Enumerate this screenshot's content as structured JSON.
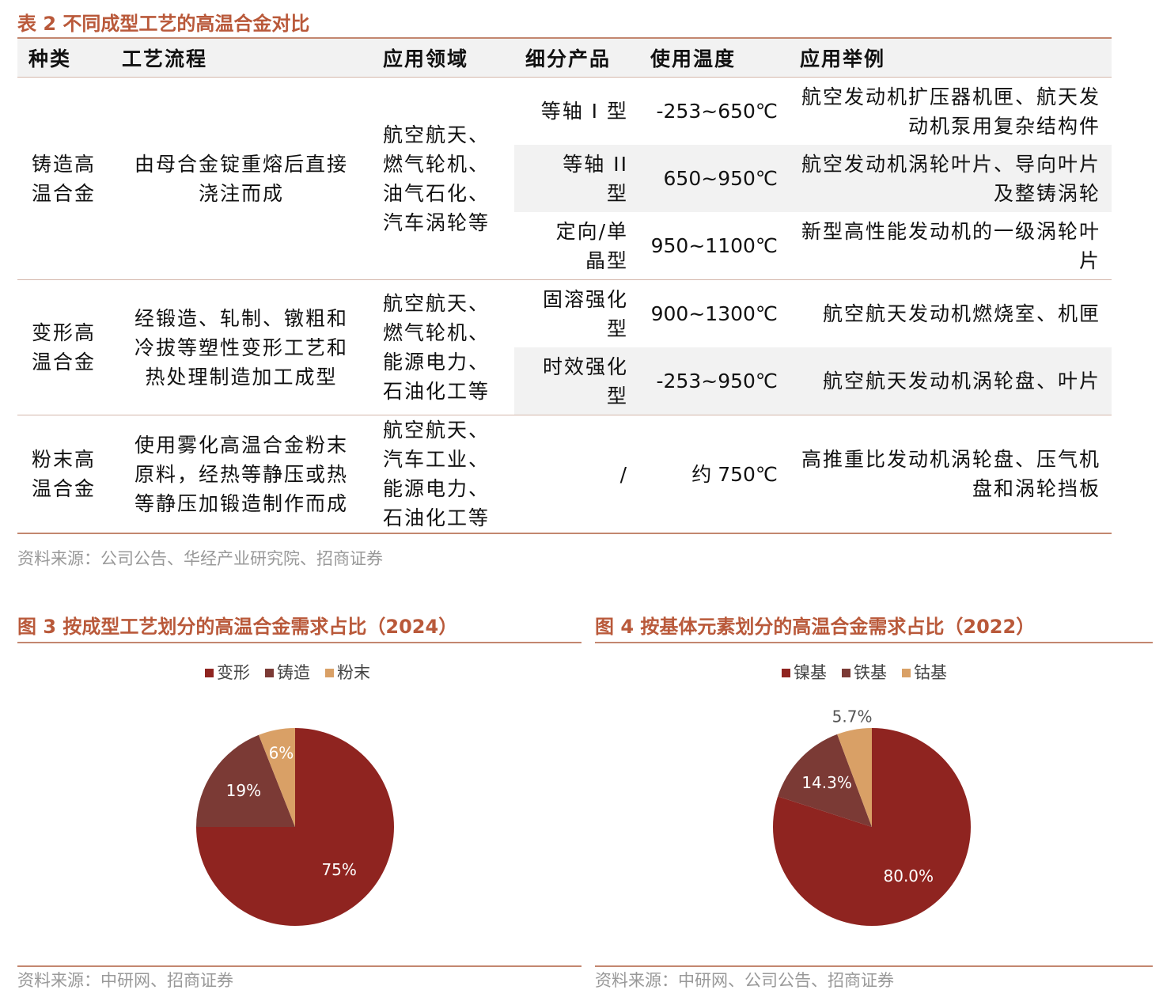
{
  "table": {
    "title": "表 2  不同成型工艺的高温合金对比",
    "headers": [
      "种类",
      "工艺流程",
      "应用领域",
      "细分产品",
      "使用温度",
      "应用举例"
    ],
    "groups": [
      {
        "category": "铸造高温合金",
        "process": "由母合金锭重熔后直接浇注而成",
        "application": "航空航天、燃气轮机、油气石化、汽车涡轮等",
        "rows": [
          [
            "等轴 I 型",
            "-253~650℃",
            "航空发动机扩压器机匣、航天发动机泵用复杂结构件"
          ],
          [
            "等轴 II 型",
            "650~950℃",
            "航空发动机涡轮叶片、导向叶片及整铸涡轮"
          ],
          [
            "定向/单晶型",
            "950~1100℃",
            "新型高性能发动机的一级涡轮叶片"
          ]
        ]
      },
      {
        "category": "变形高温合金",
        "process": "经锻造、轧制、镦粗和冷拔等塑性变形工艺和热处理制造加工成型",
        "application": "航空航天、燃气轮机、能源电力、石油化工等",
        "rows": [
          [
            "固溶强化型",
            "900~1300℃",
            "航空航天发动机燃烧室、机匣"
          ],
          [
            "时效强化型",
            "-253~950℃",
            "航空航天发动机涡轮盘、叶片"
          ]
        ]
      },
      {
        "category": "粉末高温合金",
        "process": "使用雾化高温合金粉末原料，经热等静压或热等静压加锻造制作而成",
        "application": "航空航天、汽车工业、能源电力、石油化工等",
        "rows": [
          [
            "/",
            "约 750℃",
            "高推重比发动机涡轮盘、压气机盘和涡轮挡板"
          ]
        ]
      }
    ],
    "source": "资料来源：公司公告、华经产业研究院、招商证券"
  },
  "chart_data": [
    {
      "type": "pie",
      "title": "图 3  按成型工艺划分的高温合金需求占比（2024）",
      "categories": [
        "变形",
        "铸造",
        "粉末"
      ],
      "values": [
        75,
        19,
        6
      ],
      "value_labels": [
        "75%",
        "19%",
        "6%"
      ],
      "colors": [
        "#8f2420",
        "#7b3a35",
        "#d9a066"
      ],
      "source": "资料来源：中研网、招商证券"
    },
    {
      "type": "pie",
      "title": "图 4  按基体元素划分的高温合金需求占比（2022）",
      "categories": [
        "镍基",
        "铁基",
        "钴基"
      ],
      "values": [
        80.0,
        14.3,
        5.7
      ],
      "value_labels": [
        "80.0%",
        "14.3%",
        "5.7%"
      ],
      "colors": [
        "#8f2420",
        "#7b3a35",
        "#d9a066"
      ],
      "source": "资料来源：中研网、公司公告、招商证券"
    }
  ]
}
